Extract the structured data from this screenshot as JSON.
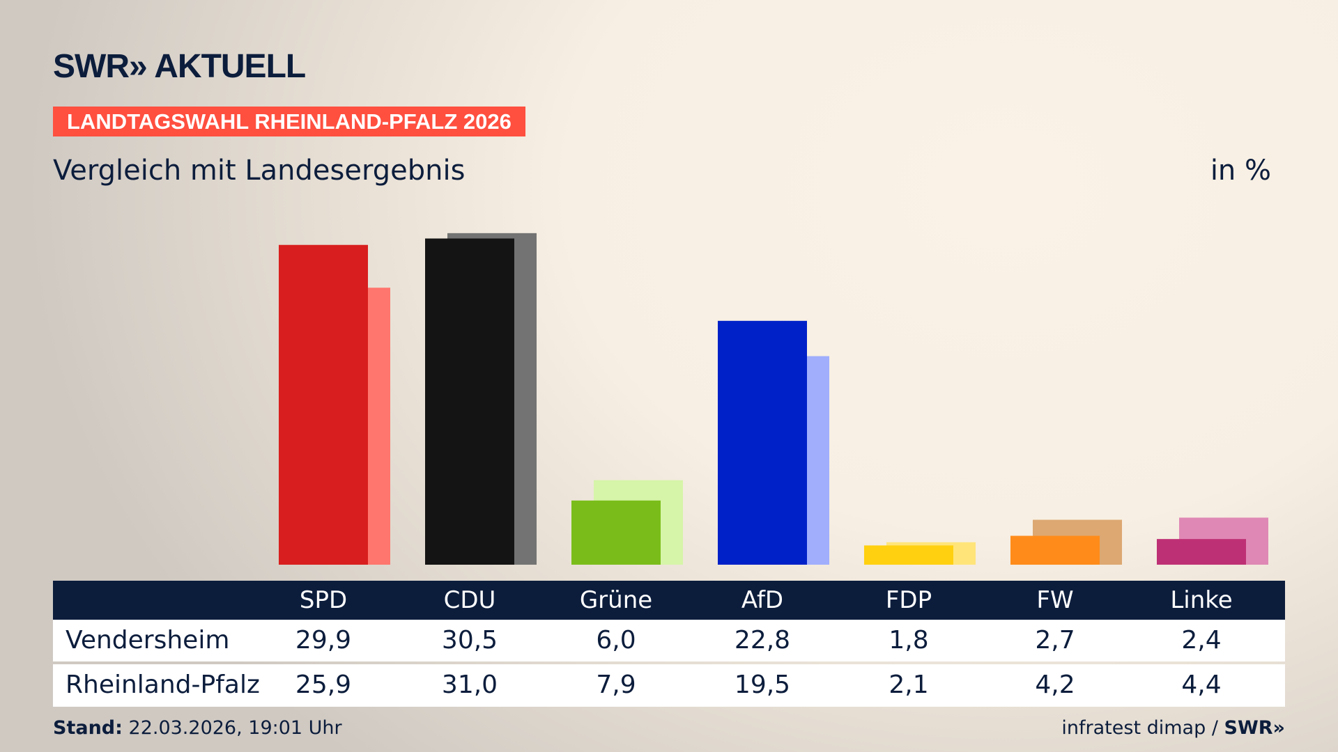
{
  "brand": {
    "logo": "SWR» AKTUELL"
  },
  "banner": "LANDTAGSWAHL RHEINLAND-PFALZ 2026",
  "subtitle": "Vergleich mit Landesergebnis",
  "unit": "in %",
  "chart_data": {
    "type": "bar",
    "categories": [
      "SPD",
      "CDU",
      "Grüne",
      "AfD",
      "FDP",
      "FW",
      "Linke"
    ],
    "series": [
      {
        "name": "Vendersheim",
        "values": [
          29.9,
          30.5,
          6.0,
          22.8,
          1.8,
          2.7,
          2.4
        ],
        "display": [
          "29,9",
          "30,5",
          "6,0",
          "22,8",
          "1,8",
          "2,7",
          "2,4"
        ]
      },
      {
        "name": "Rheinland-Pfalz",
        "values": [
          25.9,
          31.0,
          7.9,
          19.5,
          2.1,
          4.2,
          4.4
        ],
        "display": [
          "25,9",
          "31,0",
          "7,9",
          "19,5",
          "2,1",
          "4,2",
          "4,4"
        ]
      }
    ],
    "colors": [
      "#d81e1e",
      "#141414",
      "#7abd1a",
      "#0021c8",
      "#ffd010",
      "#ff8c1a",
      "#be3075"
    ],
    "colors_state": [
      "#ff766e",
      "#737373",
      "#d6f5a8",
      "#a0aefc",
      "#ffe47a",
      "#dda872",
      "#df88b5"
    ],
    "ylim": [
      0,
      31
    ]
  },
  "footer": {
    "stand_label": "Stand:",
    "stand_value": "22.03.2026, 19:01 Uhr",
    "source": "infratest dimap /",
    "source_logo": "SWR»"
  }
}
